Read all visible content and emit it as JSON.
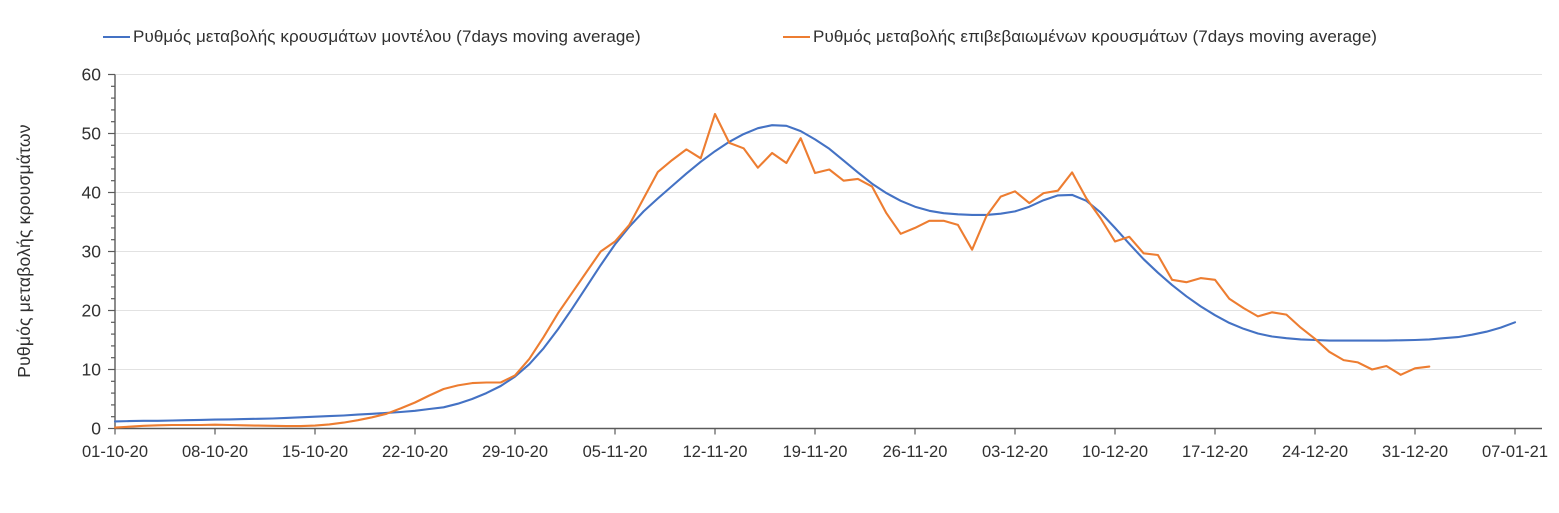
{
  "legend": {
    "items": [
      {
        "label": "Ρυθμός μεταβολής κρουσμάτων μοντέλου (7days moving average)",
        "series_key": "model"
      },
      {
        "label": "Ρυθμός μεταβολής επιβεβαιωμένων κρουσμάτων (7days moving average)",
        "series_key": "confirmed"
      }
    ]
  },
  "colors": {
    "model_line": "#4472C4",
    "confirmed_line": "#ED7D31",
    "grid": "#E2E2E2",
    "axis": "#5A5A5A",
    "tick_text": "#303030"
  },
  "chart_data": {
    "type": "line",
    "title": "",
    "xlabel": "",
    "ylabel": "Ρυθμός μεταβολής κρουσμάτων",
    "ylim": [
      0,
      60
    ],
    "y_major_step": 10,
    "y_minor_step": 2,
    "y_tick_labels": [
      "0",
      "10",
      "20",
      "30",
      "40",
      "50",
      "60"
    ],
    "grid": "horizontal-only",
    "legend_position": "top",
    "x_is_daily": true,
    "x_total_days": 98,
    "x_tick_days": [
      0,
      7,
      14,
      21,
      28,
      35,
      42,
      49,
      56,
      63,
      70,
      77,
      84,
      91,
      98
    ],
    "x_tick_labels": [
      "01-10-20",
      "08-10-20",
      "15-10-20",
      "22-10-20",
      "29-10-20",
      "05-11-20",
      "12-11-20",
      "19-11-20",
      "26-11-20",
      "03-12-20",
      "10-12-20",
      "17-12-20",
      "24-12-20",
      "31-12-20",
      "07-01-21"
    ],
    "series": [
      {
        "name": "Ρυθμός μεταβολής κρουσμάτων μοντέλου (7days moving average)",
        "key": "model",
        "color": "#4472C4",
        "start_day": 0,
        "values": [
          1.2,
          1.25,
          1.3,
          1.3,
          1.35,
          1.4,
          1.45,
          1.5,
          1.55,
          1.6,
          1.65,
          1.7,
          1.8,
          1.9,
          2.0,
          2.1,
          2.2,
          2.35,
          2.5,
          2.65,
          2.8,
          3.0,
          3.3,
          3.6,
          4.2,
          5.0,
          6.0,
          7.2,
          8.8,
          10.9,
          13.6,
          16.8,
          20.3,
          24.0,
          27.7,
          31.2,
          34.2,
          36.8,
          39.0,
          41.1,
          43.2,
          45.2,
          47.0,
          48.6,
          49.9,
          50.9,
          51.4,
          51.3,
          50.4,
          49.0,
          47.4,
          45.4,
          43.4,
          41.5,
          39.9,
          38.6,
          37.6,
          36.9,
          36.5,
          36.3,
          36.2,
          36.2,
          36.4,
          36.8,
          37.6,
          38.7,
          39.5,
          39.6,
          38.6,
          36.6,
          34.0,
          31.3,
          28.7,
          26.4,
          24.3,
          22.4,
          20.7,
          19.2,
          17.9,
          16.9,
          16.1,
          15.6,
          15.3,
          15.1,
          15.0,
          14.9,
          14.9,
          14.9,
          14.9,
          14.9,
          14.95,
          15.0,
          15.1,
          15.3,
          15.5,
          15.9,
          16.4,
          17.1,
          18.0
        ]
      },
      {
        "name": "Ρυθμός μεταβολής επιβεβαιωμένων κρουσμάτων (7days moving average)",
        "key": "confirmed",
        "color": "#ED7D31",
        "start_day": 0,
        "values": [
          0.15,
          0.3,
          0.45,
          0.55,
          0.6,
          0.6,
          0.6,
          0.65,
          0.6,
          0.55,
          0.5,
          0.45,
          0.4,
          0.4,
          0.5,
          0.7,
          1.0,
          1.4,
          1.9,
          2.5,
          3.4,
          4.4,
          5.6,
          6.7,
          7.3,
          7.7,
          7.8,
          7.8,
          9.0,
          11.8,
          15.5,
          19.5,
          23.0,
          26.5,
          30.0,
          31.7,
          34.5,
          39.0,
          43.5,
          45.5,
          47.3,
          45.8,
          53.3,
          48.4,
          47.5,
          44.2,
          46.7,
          45.0,
          49.2,
          43.3,
          43.9,
          42.0,
          42.3,
          41.0,
          36.5,
          33.0,
          34.0,
          35.2,
          35.2,
          34.5,
          30.3,
          36.0,
          39.3,
          40.2,
          38.2,
          39.9,
          40.3,
          43.4,
          39.0,
          35.6,
          31.7,
          32.5,
          29.7,
          29.4,
          25.2,
          24.8,
          25.5,
          25.2,
          22.0,
          20.4,
          19.0,
          19.7,
          19.3,
          17.1,
          15.2,
          13.0,
          11.6,
          11.2,
          10.0,
          10.6,
          9.1,
          10.2,
          10.5
        ]
      }
    ]
  }
}
